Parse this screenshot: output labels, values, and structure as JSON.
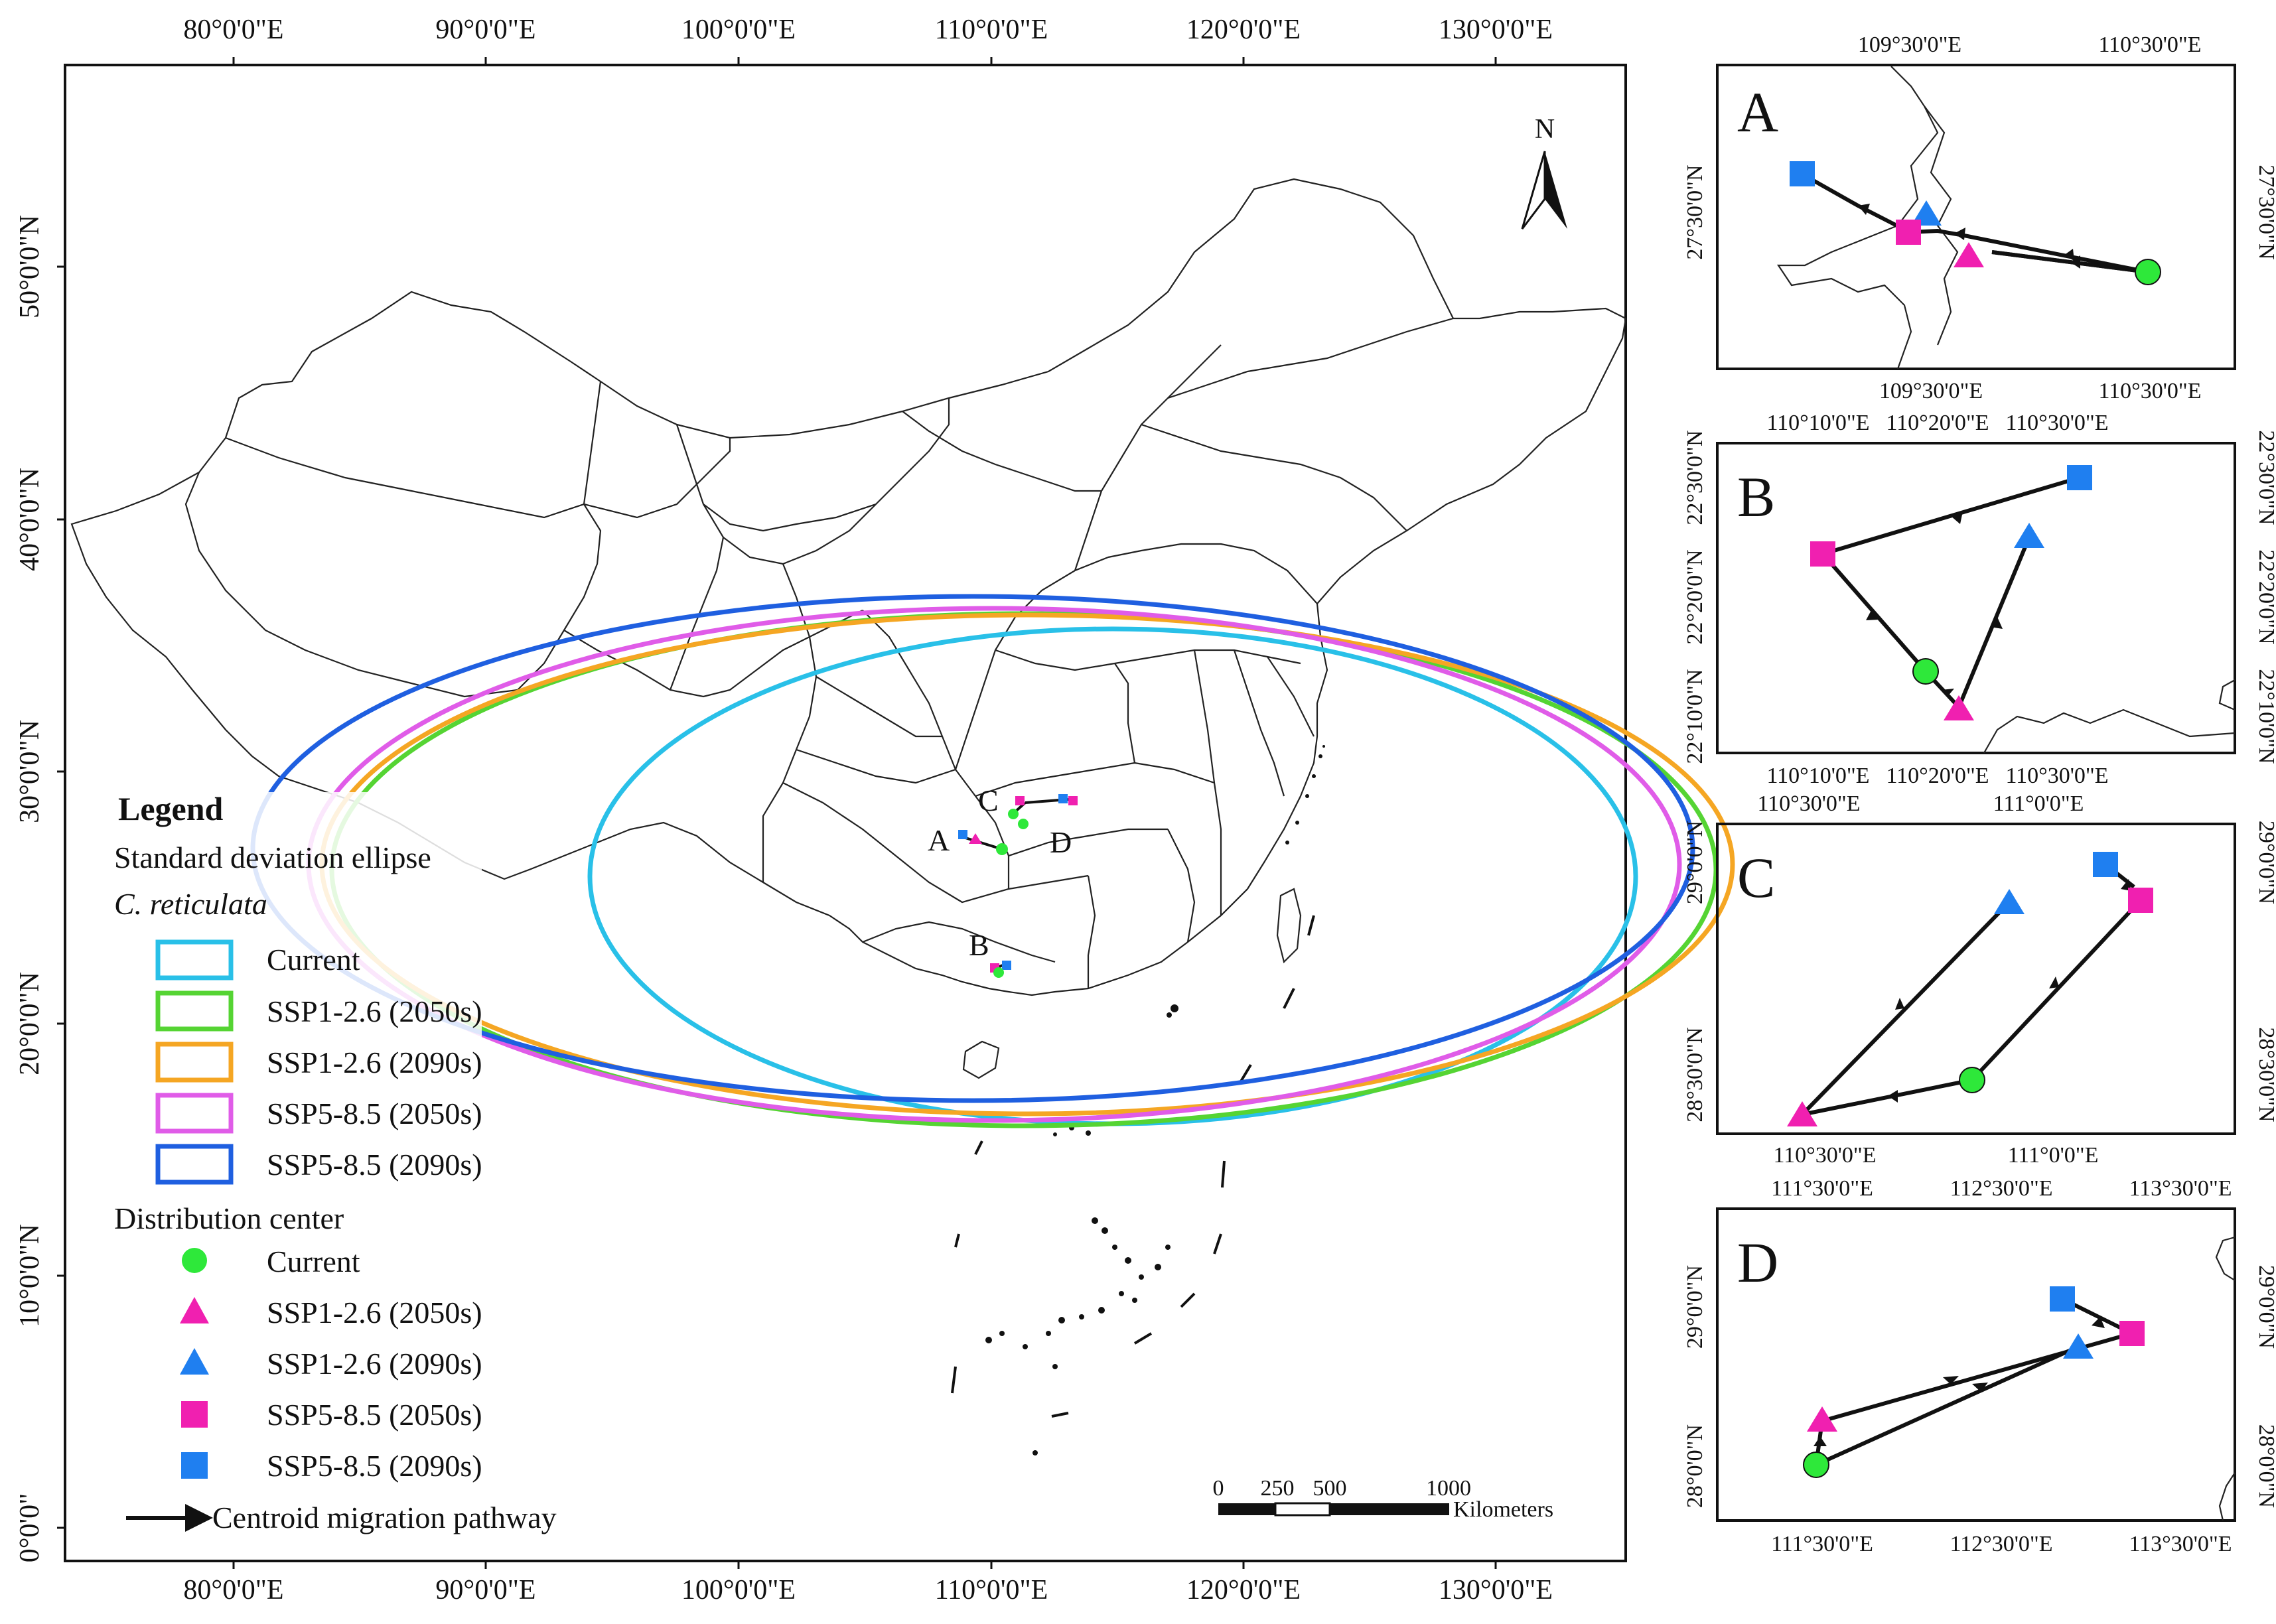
{
  "colors": {
    "current": "#29c0e8",
    "ssp126_2050": "#55d433",
    "ssp126_2090": "#f5a623",
    "ssp585_2050": "#e05ce8",
    "ssp585_2090": "#1f5fe0",
    "center_current": "#2ee83a",
    "center_ssp126_2050": "#f020b0",
    "center_ssp126_2090": "#1f7ff0",
    "center_ssp585_2050": "#f020b0",
    "center_ssp585_2090": "#1f7ff0"
  },
  "main_map": {
    "top_ticks": [
      "80°0'0\"E",
      "90°0'0\"E",
      "100°0'0\"E",
      "110°0'0\"E",
      "120°0'0\"E",
      "130°0'0\"E"
    ],
    "bottom_ticks": [
      "80°0'0\"E",
      "90°0'0\"E",
      "100°0'0\"E",
      "110°0'0\"E",
      "120°0'0\"E",
      "130°0'0\"E"
    ],
    "left_ticks": [
      "50°0'0\"N",
      "40°0'0\"N",
      "30°0'0\"N",
      "20°0'0\"N",
      "10°0'0\"N",
      "0°0'0\""
    ],
    "north_label": "N",
    "site_labels": [
      "A",
      "B",
      "C",
      "D"
    ],
    "scale": {
      "labels": [
        "0",
        "250",
        "500",
        "1000"
      ],
      "unit": "Kilometers"
    }
  },
  "legend": {
    "title": "Legend",
    "ellipse_heading": "Standard deviation ellipse",
    "species": "C. reticulata",
    "ellipse_items": [
      "Current",
      "SSP1-2.6 (2050s)",
      "SSP1-2.6 (2090s)",
      "SSP5-8.5 (2050s)",
      "SSP5-8.5 (2090s)"
    ],
    "center_heading": "Distribution center",
    "center_items": [
      "Current",
      "SSP1-2.6 (2050s)",
      "SSP1-2.6 (2090s)",
      "SSP5-8.5 (2050s)",
      "SSP5-8.5 (2090s)"
    ],
    "pathway_label": "Centroid migration pathway"
  },
  "panels": {
    "A": {
      "letter": "A",
      "top_ticks": [
        "109°30'0\"E",
        "110°30'0\"E"
      ],
      "bottom_ticks": [
        "109°30'0\"E",
        "110°30'0\"E"
      ],
      "left_ticks": [
        "27°30'0\"N"
      ],
      "right_ticks": [
        "27°30'0\"N"
      ]
    },
    "B": {
      "letter": "B",
      "top_ticks": [
        "110°10'0\"E",
        "110°20'0\"E",
        "110°30'0\"E"
      ],
      "bottom_ticks": [
        "110°10'0\"E",
        "110°20'0\"E",
        "110°30'0\"E"
      ],
      "left_ticks": [
        "22°30'0\"N",
        "22°20'0\"N",
        "22°10'0\"N"
      ],
      "right_ticks": [
        "22°30'0\"N",
        "22°20'0\"N",
        "22°10'0\"N"
      ]
    },
    "C": {
      "letter": "C",
      "top_ticks": [
        "110°30'0\"E",
        "111°0'0\"E"
      ],
      "bottom_ticks": [
        "110°30'0\"E",
        "111°0'0\"E"
      ],
      "left_ticks": [
        "29°0'0\"N",
        "28°30'0\"N"
      ],
      "right_ticks": [
        "29°0'0\"N",
        "28°30'0\"N"
      ]
    },
    "D": {
      "letter": "D",
      "top_ticks": [
        "111°30'0\"E",
        "112°30'0\"E",
        "113°30'0\"E"
      ],
      "bottom_ticks": [
        "111°30'0\"E",
        "112°30'0\"E",
        "113°30'0\"E"
      ],
      "left_ticks": [
        "29°0'0\"N",
        "28°0'0\"N"
      ],
      "right_ticks": [
        "29°0'0\"N",
        "28°0'0\"N"
      ]
    }
  }
}
